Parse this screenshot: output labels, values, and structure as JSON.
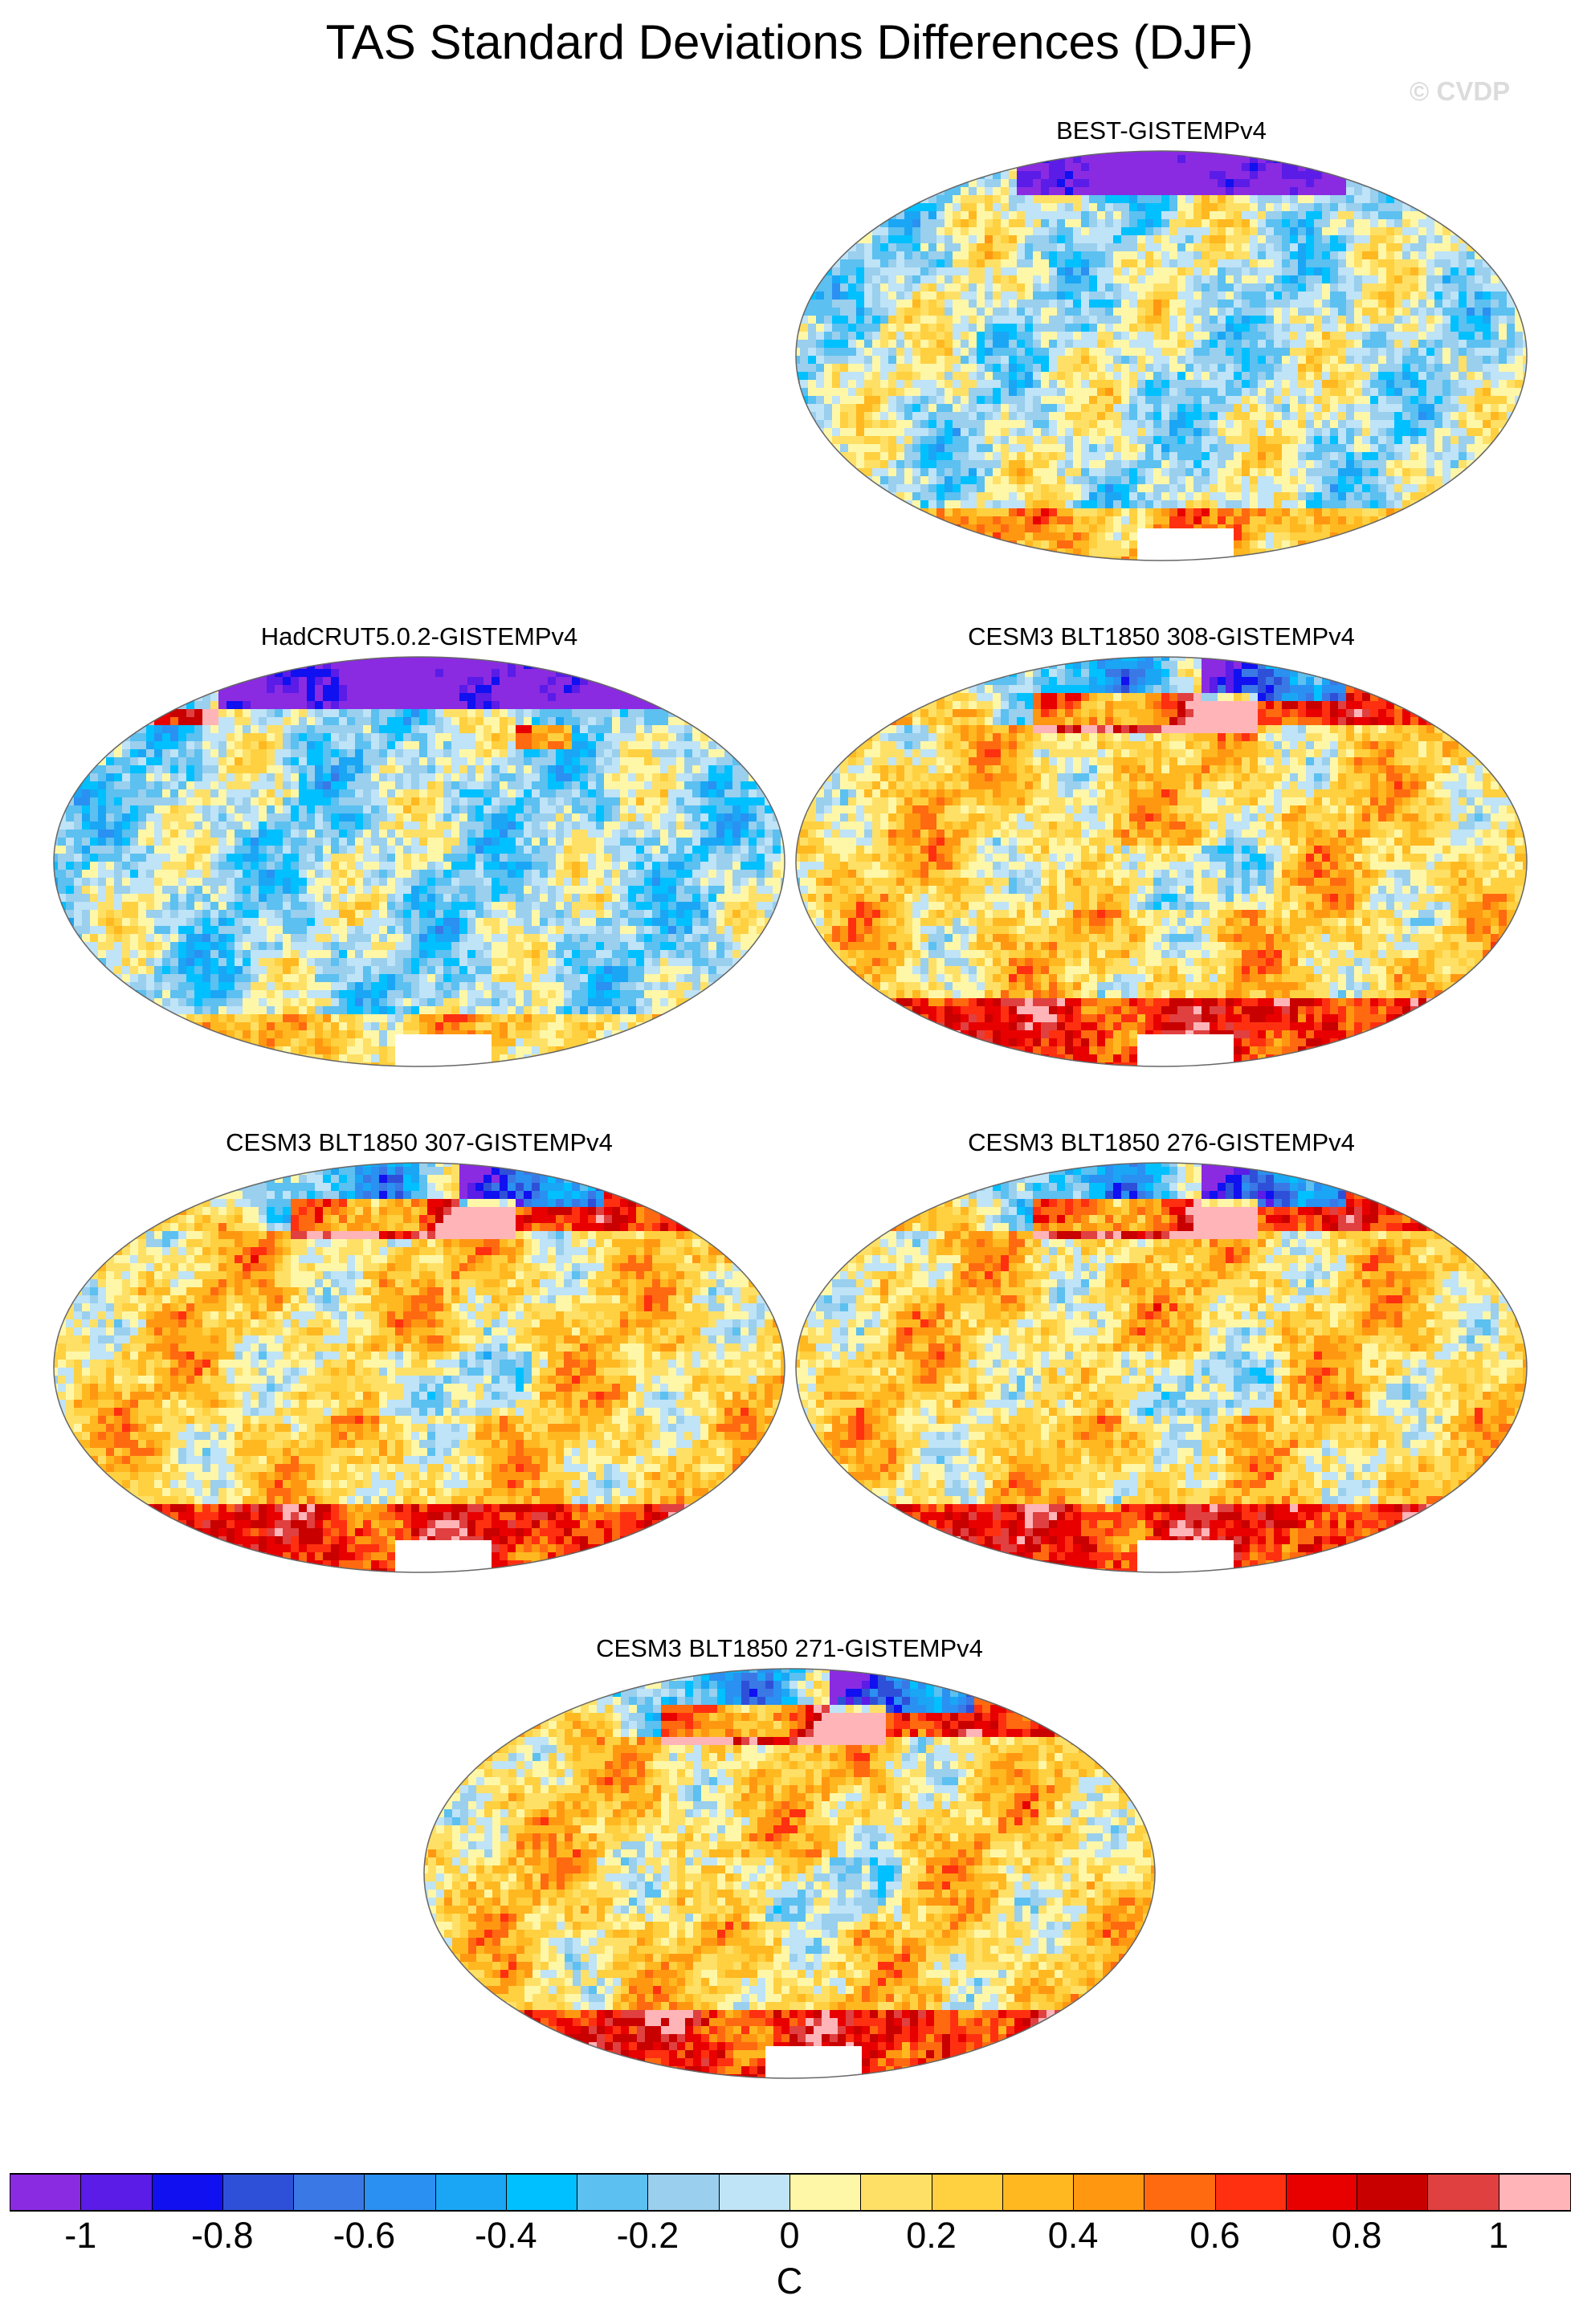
{
  "figure": {
    "title": "TAS Standard Deviations Differences (DJF)",
    "watermark": "© CVDP"
  },
  "panels": [
    {
      "id": "best",
      "title": "BEST-GISTEMPv4",
      "pattern": "obs_best"
    },
    {
      "id": "hadcrut",
      "title": "HadCRUT5.0.2-GISTEMPv4",
      "pattern": "obs_hadcrut"
    },
    {
      "id": "r308",
      "title": "CESM3 BLT1850 308-GISTEMPv4",
      "pattern": "model"
    },
    {
      "id": "r307",
      "title": "CESM3 BLT1850 307-GISTEMPv4",
      "pattern": "model"
    },
    {
      "id": "r276",
      "title": "CESM3 BLT1850 276-GISTEMPv4",
      "pattern": "model"
    },
    {
      "id": "r271",
      "title": "CESM3 BLT1850 271-GISTEMPv4",
      "pattern": "model"
    }
  ],
  "colorbar": {
    "unit": "C",
    "labels": [
      "-1",
      "-0.8",
      "-0.6",
      "-0.4",
      "-0.2",
      "0",
      "0.2",
      "0.4",
      "0.6",
      "0.8",
      "1"
    ],
    "colors": [
      "#8a2be2",
      "#5a1ce6",
      "#1010f0",
      "#2e50d8",
      "#3a78e6",
      "#2a90f2",
      "#1aa6f5",
      "#00c0ff",
      "#5cc0f0",
      "#9acfee",
      "#bfe3f7",
      "#fff7a8",
      "#ffe066",
      "#ffd040",
      "#ffb820",
      "#ff9810",
      "#ff6a10",
      "#ff3010",
      "#e80000",
      "#c80000",
      "#e04040",
      "#ffb4b8"
    ]
  }
}
